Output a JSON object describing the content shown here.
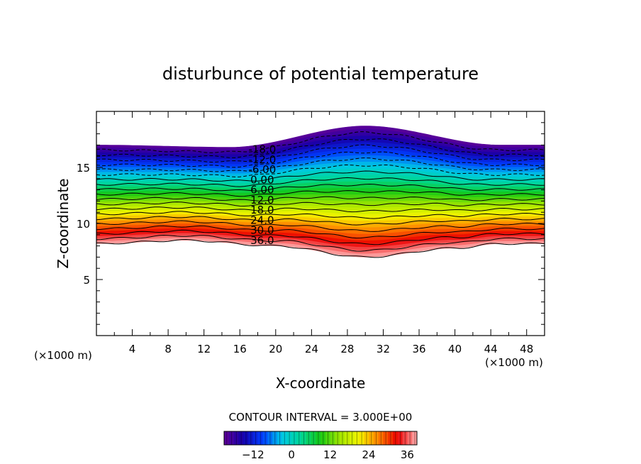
{
  "chart_data": {
    "type": "contour",
    "title": "disturbunce of potential temperature",
    "xlabel": "X-coordinate",
    "ylabel": "Z-coordinate",
    "x_unit": "(×1000 m)",
    "y_unit": "(×1000 m)",
    "xlim": [
      0,
      50
    ],
    "ylim": [
      0,
      20
    ],
    "x_ticks": [
      "4",
      "8",
      "12",
      "16",
      "20",
      "24",
      "28",
      "32",
      "36",
      "40",
      "44",
      "48"
    ],
    "y_ticks": [
      "5",
      "10",
      "15"
    ],
    "contour_interval_text": "CONTOUR INTERVAL = 3.000E+00",
    "contour_interval": 3.0,
    "value_range": [
      -21,
      39
    ],
    "contour_labels": [
      "-18.0",
      "-12.0",
      "-6.00",
      "0.00",
      "6.00",
      "12.0",
      "18.0",
      "24.0",
      "30.0",
      "36.0"
    ],
    "colorbar_ticks": [
      "−12",
      "0",
      "12",
      "24",
      "36"
    ],
    "field": {
      "bottom_boundary_z": [
        [
          0,
          8.2
        ],
        [
          10,
          8.5
        ],
        [
          20,
          8.0
        ],
        [
          30,
          7.0
        ],
        [
          40,
          7.8
        ],
        [
          45,
          8.2
        ],
        [
          50,
          8.2
        ]
      ],
      "top_boundary_z": [
        [
          0,
          17.0
        ],
        [
          15,
          16.8
        ],
        [
          30,
          18.7
        ],
        [
          45,
          17.0
        ],
        [
          50,
          17.0
        ]
      ]
    },
    "grid": false,
    "legend_position": "bottom-center"
  }
}
